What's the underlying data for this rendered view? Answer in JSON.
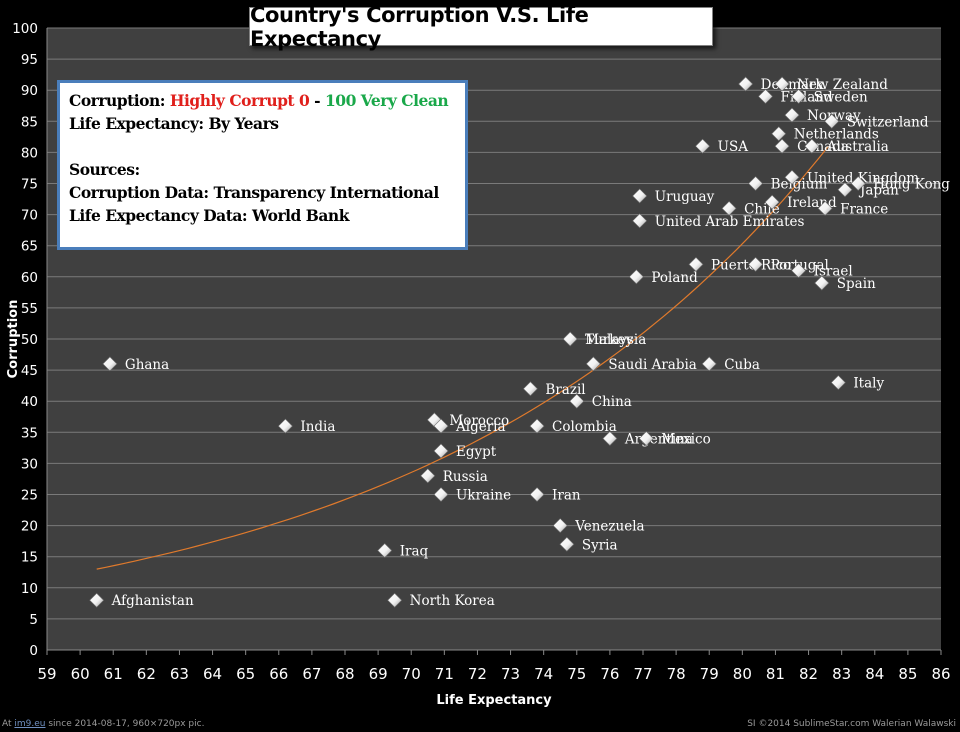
{
  "chart_data": {
    "type": "scatter",
    "title": "Country's Corruption V.S. Life Expectancy",
    "xlabel": "Life Expectancy",
    "ylabel": "Corruption",
    "xlim": [
      59,
      86
    ],
    "ylim": [
      0,
      100
    ],
    "xticks": [
      59,
      60,
      61,
      62,
      63,
      64,
      65,
      66,
      67,
      68,
      69,
      70,
      71,
      72,
      73,
      74,
      75,
      76,
      77,
      78,
      79,
      80,
      81,
      82,
      83,
      84,
      85,
      86
    ],
    "yticks": [
      0,
      5,
      10,
      15,
      20,
      25,
      30,
      35,
      40,
      45,
      50,
      55,
      60,
      65,
      70,
      75,
      80,
      85,
      90,
      95,
      100
    ],
    "grid": "horizontal",
    "trendline": {
      "type": "exponential",
      "from": [
        60.5,
        13
      ],
      "to": [
        82.6,
        81
      ]
    },
    "points": [
      {
        "label": "Afghanistan",
        "x": 60.5,
        "y": 8
      },
      {
        "label": "Ghana",
        "x": 60.9,
        "y": 46
      },
      {
        "label": "India",
        "x": 66.2,
        "y": 36
      },
      {
        "label": "Iraq",
        "x": 69.2,
        "y": 16
      },
      {
        "label": "North Korea",
        "x": 69.5,
        "y": 8
      },
      {
        "label": "Russia",
        "x": 70.5,
        "y": 28
      },
      {
        "label": "Morocco",
        "x": 70.7,
        "y": 37
      },
      {
        "label": "Algeria",
        "x": 70.9,
        "y": 36
      },
      {
        "label": "Egypt",
        "x": 70.9,
        "y": 32
      },
      {
        "label": "Ukraine",
        "x": 70.9,
        "y": 25
      },
      {
        "label": "Brazil",
        "x": 73.6,
        "y": 42
      },
      {
        "label": "Colombia",
        "x": 73.8,
        "y": 36
      },
      {
        "label": "Iran",
        "x": 73.8,
        "y": 25
      },
      {
        "label": "Venezuela",
        "x": 74.5,
        "y": 20
      },
      {
        "label": "Syria",
        "x": 74.7,
        "y": 17
      },
      {
        "label": "Turkey",
        "x": 74.8,
        "y": 50
      },
      {
        "label": "Malaysia",
        "x": 74.8,
        "y": 50
      },
      {
        "label": "China",
        "x": 75.0,
        "y": 40
      },
      {
        "label": "Saudi Arabia",
        "x": 75.5,
        "y": 46
      },
      {
        "label": "Argentina",
        "x": 76.0,
        "y": 34
      },
      {
        "label": "Mexico",
        "x": 77.1,
        "y": 34
      },
      {
        "label": "Poland",
        "x": 76.8,
        "y": 60
      },
      {
        "label": "Uruguay",
        "x": 76.9,
        "y": 73
      },
      {
        "label": "United Arab Emirates",
        "x": 76.9,
        "y": 69
      },
      {
        "label": "Puerto Rico",
        "x": 78.6,
        "y": 62
      },
      {
        "label": "USA",
        "x": 78.8,
        "y": 81
      },
      {
        "label": "Cuba",
        "x": 79.0,
        "y": 46
      },
      {
        "label": "Chile",
        "x": 79.6,
        "y": 71
      },
      {
        "label": "Denmark",
        "x": 80.1,
        "y": 91
      },
      {
        "label": "Belgium",
        "x": 80.4,
        "y": 75
      },
      {
        "label": "Portugal",
        "x": 80.4,
        "y": 62
      },
      {
        "label": "Finland",
        "x": 80.7,
        "y": 89
      },
      {
        "label": "Ireland",
        "x": 80.9,
        "y": 72
      },
      {
        "label": "Netherlands",
        "x": 81.1,
        "y": 83
      },
      {
        "label": "Canada",
        "x": 81.2,
        "y": 81
      },
      {
        "label": "New Zealand",
        "x": 81.2,
        "y": 91
      },
      {
        "label": "Norway",
        "x": 81.5,
        "y": 86
      },
      {
        "label": "United Kingdom",
        "x": 81.5,
        "y": 76
      },
      {
        "label": "Sweden",
        "x": 81.7,
        "y": 89
      },
      {
        "label": "Israel",
        "x": 81.7,
        "y": 61
      },
      {
        "label": "Australia",
        "x": 82.1,
        "y": 81
      },
      {
        "label": "Spain",
        "x": 82.4,
        "y": 59
      },
      {
        "label": "France",
        "x": 82.5,
        "y": 71
      },
      {
        "label": "Switzerland",
        "x": 82.7,
        "y": 85
      },
      {
        "label": "Italy",
        "x": 82.9,
        "y": 43
      },
      {
        "label": "Japan",
        "x": 83.1,
        "y": 74
      },
      {
        "label": "Hong Kong",
        "x": 83.5,
        "y": 75
      }
    ]
  },
  "info_box": {
    "line1_prefix": "Corruption: ",
    "line1_red": "Highly Corrupt 0",
    "line1_sep": " - ",
    "line1_green": "100 Very Clean",
    "line2": "Life Expectancy: By Years",
    "line3": "Sources:",
    "line4": "Corruption Data: Transparency International",
    "line5": "Life Expectancy Data: World Bank"
  },
  "footer": {
    "left_prefix": "At ",
    "left_link": "im9.eu",
    "left_suffix": " since 2014-08-17, 960×720px pic.",
    "right": "SI ©2014 SublimeStar.com Walerian Walawski"
  },
  "colors": {
    "plot_background": "#404040",
    "gridline": "#7a7a7a",
    "trendline": "#e07a2c",
    "marker": "#f2f2f2",
    "label": "#ffffff",
    "red_text": "#e0201c",
    "green_text": "#1aa84a",
    "info_border": "#4a7ebb"
  }
}
